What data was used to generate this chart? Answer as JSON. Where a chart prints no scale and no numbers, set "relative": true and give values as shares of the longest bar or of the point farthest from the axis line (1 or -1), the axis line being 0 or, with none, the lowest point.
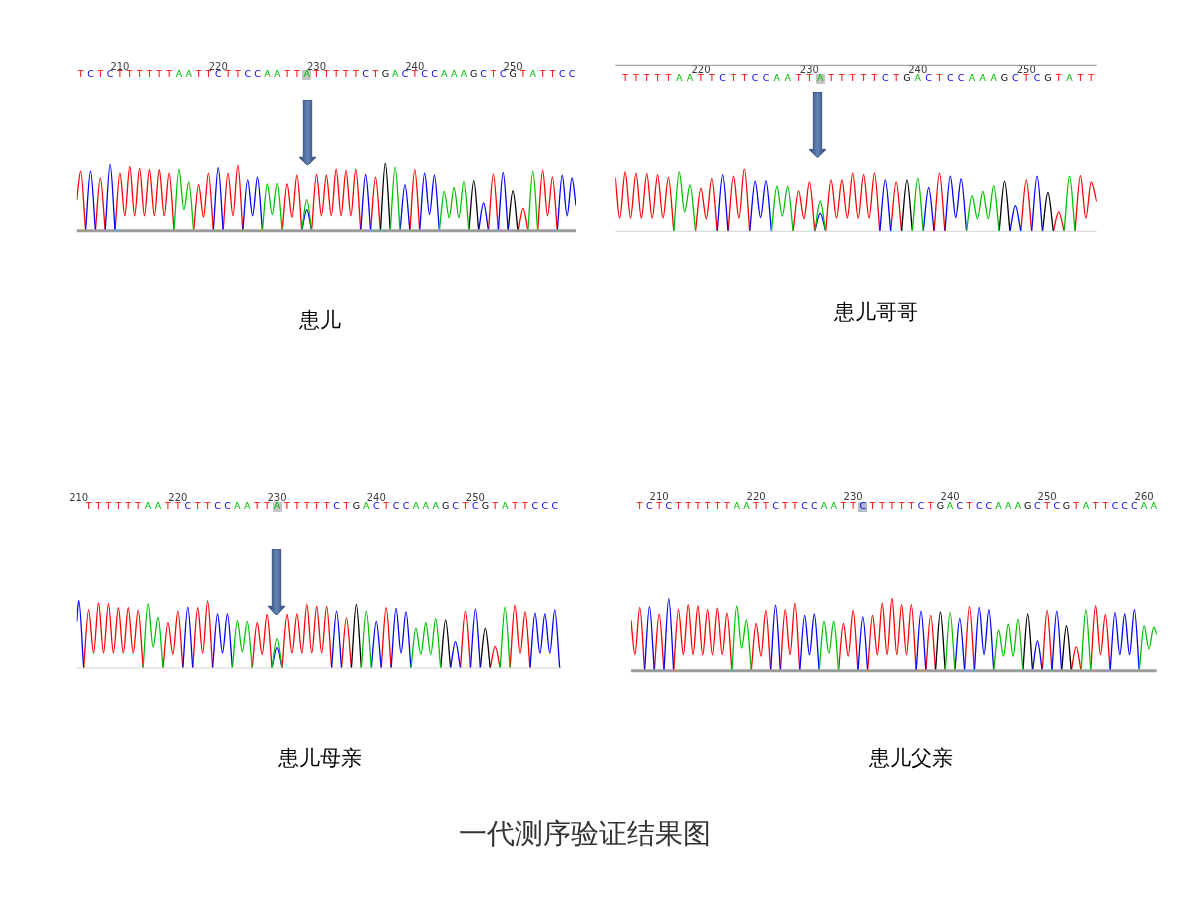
{
  "chart_data": [
    {
      "type": "line",
      "title": "患儿",
      "relative": true,
      "xlim": [
        205.6,
        256.4
      ],
      "xticks": [
        210,
        220,
        230,
        240,
        250
      ],
      "annotations": [
        "T",
        "C",
        "T",
        "C",
        "T",
        "T",
        "T",
        "T",
        "T",
        "T",
        "A",
        "A",
        "T",
        "T",
        "C",
        "T",
        "T",
        "C",
        "C",
        "A",
        "A",
        "T",
        "T",
        "A",
        "T",
        "T",
        "T",
        "T",
        "T",
        "C",
        "T",
        "G",
        "A",
        "C",
        "T",
        "C",
        "C",
        "A",
        "A",
        "A",
        "G",
        "C",
        "T",
        "C",
        "G",
        "T",
        "A",
        "T",
        "T",
        "C",
        "C"
      ],
      "series": [
        {
          "color": "#00c000",
          "x": [
            215.5,
            216,
            216.5,
            217,
            217.5,
            221,
            224.5,
            225,
            225.5,
            226,
            226.5,
            227.5,
            228.5,
            229,
            229.5,
            233.5,
            237.5,
            238,
            238.5,
            240.5,
            242.5,
            243,
            243.5,
            244,
            244.5,
            245,
            245.5,
            248.5,
            251.5,
            252,
            252.5
          ],
          "values": [
            0,
            0.91,
            0.31,
            0.72,
            0,
            null,
            0,
            0.69,
            0.24,
            0.7,
            0,
            null,
            0,
            0.46,
            0,
            null,
            0,
            0.94,
            0,
            null,
            0,
            0.58,
            0.19,
            0.64,
            0.19,
            0.73,
            0,
            null,
            0,
            0.88,
            0
          ]
        },
        {
          "color": "#0000ff",
          "x": [
            206.5,
            207,
            207.5,
            208,
            208.5,
            209,
            209.5,
            214.5,
            219.5,
            220,
            220.5,
            221.5,
            222.5,
            223,
            223.5,
            224,
            224.5,
            226.5,
            228.5,
            229,
            229.5,
            232,
            234.5,
            235,
            235.5,
            237,
            238.5,
            239,
            239.5,
            240,
            240.5,
            241,
            241.5,
            242,
            242.5,
            244.5,
            246.5,
            247,
            247.5,
            248,
            248.5,
            249,
            249.5,
            252,
            254.5,
            255,
            255.5,
            256,
            256.4
          ],
          "values": [
            0,
            0.88,
            0,
            null,
            0,
            0.98,
            0,
            null,
            0,
            0.93,
            0,
            null,
            0,
            0.75,
            0.22,
            0.79,
            0,
            null,
            0,
            0.31,
            0,
            null,
            0,
            0.83,
            0,
            null,
            0,
            0.68,
            0,
            null,
            0,
            0.85,
            0.24,
            0.82,
            0,
            null,
            0,
            0.41,
            0,
            null,
            0,
            0.86,
            0,
            null,
            0,
            0.82,
            0.22,
            0.78,
            0.38
          ]
        },
        {
          "color": "#000000",
          "x": [
            236.5,
            237,
            237.5,
            241.5,
            245.5,
            246,
            246.5,
            248,
            249.5,
            250,
            250.5
          ],
          "values": [
            0,
            1,
            0,
            null,
            0,
            0.74,
            0,
            null,
            0,
            0.59,
            0
          ]
        },
        {
          "color": "#ff0000",
          "x": [
            205.6,
            206,
            206.5,
            207,
            207.5,
            208,
            208.5,
            209,
            209.5,
            210,
            210.5,
            211,
            211.5,
            212,
            212.5,
            213,
            213.5,
            214,
            214.5,
            215,
            215.5,
            216.5,
            217.5,
            218,
            218.5,
            219,
            219.5,
            220,
            220.5,
            221,
            221.5,
            222,
            222.5,
            224.5,
            226.5,
            227,
            227.5,
            228,
            228.5,
            229,
            229.5,
            230,
            230.5,
            231,
            231.5,
            232,
            232.5,
            233,
            233.5,
            234,
            234.5,
            235,
            235.5,
            236,
            236.5,
            238,
            239.5,
            240,
            240.5,
            244,
            247.5,
            248,
            248.5,
            249.5,
            250.5,
            251,
            251.5,
            252,
            252.5,
            253,
            253.5,
            254,
            254.5
          ],
          "values": [
            0.46,
            0.88,
            0,
            null,
            0,
            0.78,
            0,
            null,
            0,
            0.85,
            0.22,
            0.95,
            0.22,
            0.92,
            0.22,
            0.9,
            0.22,
            0.9,
            0.22,
            0.85,
            0,
            null,
            0,
            0.68,
            0.2,
            0.85,
            0,
            null,
            0,
            0.85,
            0.22,
            0.97,
            0,
            null,
            0,
            0.69,
            0.2,
            0.82,
            0,
            null,
            0,
            0.83,
            0.22,
            0.82,
            0.22,
            0.91,
            0.22,
            0.89,
            0.22,
            0.91,
            0,
            null,
            0,
            0.79,
            0,
            null,
            0,
            0.9,
            0,
            null,
            0,
            0.84,
            0,
            null,
            0,
            0.33,
            0,
            null,
            0,
            0.89,
            0.22,
            0.79,
            0
          ]
        }
      ]
    },
    {
      "type": "line",
      "title": "患儿哥哥",
      "relative": true,
      "xlim": [
        212.1,
        256.5
      ],
      "xticks": [
        220,
        230,
        240,
        250
      ],
      "annotations": [
        "T",
        "T",
        "T",
        "T",
        "T",
        "A",
        "A",
        "T",
        "T",
        "C",
        "T",
        "T",
        "C",
        "C",
        "A",
        "A",
        "T",
        "T",
        "A",
        "T",
        "T",
        "T",
        "T",
        "T",
        "C",
        "T",
        "G",
        "A",
        "C",
        "T",
        "C",
        "C",
        "A",
        "A",
        "A",
        "G",
        "C",
        "T",
        "C",
        "G",
        "T",
        "A",
        "T",
        "T"
      ],
      "series": [
        {
          "color": "#00c000",
          "x": [
            217.5,
            218,
            218.5,
            219,
            219.5,
            223,
            226.5,
            227,
            227.5,
            228,
            228.5,
            229.5,
            230.5,
            231,
            231.5,
            235.5,
            239.5,
            240,
            240.5,
            242.5,
            244.5,
            245,
            245.5,
            246,
            246.5,
            247,
            247.5,
            250.5,
            253.5,
            254,
            254.5
          ],
          "values": [
            0,
            0.95,
            0.31,
            0.74,
            0,
            null,
            0,
            0.72,
            0.24,
            0.72,
            0,
            null,
            0,
            0.48,
            0,
            null,
            0,
            0.85,
            0,
            null,
            0,
            0.57,
            0.2,
            0.64,
            0.2,
            0.73,
            0,
            null,
            0,
            0.88,
            0
          ]
        },
        {
          "color": "#0000ff",
          "x": [
            221.5,
            222,
            222.5,
            223.5,
            224.5,
            225,
            225.5,
            226,
            226.5,
            228.5,
            230.5,
            231,
            231.5,
            234,
            236.5,
            237,
            237.5,
            239,
            240.5,
            241,
            241.5,
            242,
            242.5,
            243,
            243.5,
            244,
            244.5,
            246.5,
            248.5,
            249,
            249.5,
            250,
            250.5,
            251,
            251.5
          ],
          "values": [
            0,
            0.9,
            0,
            null,
            0,
            0.8,
            0.22,
            0.81,
            0,
            null,
            0,
            0.29,
            0,
            null,
            0,
            0.82,
            0,
            null,
            0,
            0.7,
            0,
            null,
            0,
            0.88,
            0.22,
            0.84,
            0,
            null,
            0,
            0.41,
            0,
            null,
            0,
            0.88,
            0
          ]
        },
        {
          "color": "#000000",
          "x": [
            238.5,
            239,
            239.5,
            243.5,
            247.5,
            248,
            248.5,
            250,
            251.5,
            252,
            252.5
          ],
          "values": [
            0,
            0.82,
            0,
            null,
            0,
            0.8,
            0,
            null,
            0,
            0.62,
            0
          ]
        },
        {
          "color": "#ff0000",
          "x": [
            212.1,
            212.5,
            213,
            213.5,
            214,
            214.5,
            215,
            215.5,
            216,
            216.5,
            217,
            217.5,
            218.5,
            219.5,
            220,
            220.5,
            221,
            221.5,
            222,
            222.5,
            223,
            223.5,
            224,
            224.5,
            226.5,
            228.5,
            229,
            229.5,
            230,
            230.5,
            231,
            231.5,
            232,
            232.5,
            233,
            233.5,
            234,
            234.5,
            235,
            235.5,
            236,
            236.5,
            237,
            237.5,
            238,
            238.5,
            240,
            241.5,
            242,
            242.5,
            246,
            249.5,
            250,
            250.5,
            251.5,
            252.5,
            253,
            253.5,
            254,
            254.5,
            255,
            255.5,
            256,
            256.5
          ],
          "values": [
            0.85,
            0.21,
            0.95,
            0.21,
            0.93,
            0.21,
            0.92,
            0.21,
            0.9,
            0.21,
            0.86,
            0,
            null,
            0,
            0.69,
            0.2,
            0.84,
            0,
            null,
            0,
            0.88,
            0.21,
            1,
            0,
            null,
            0,
            0.65,
            0.2,
            0.79,
            0,
            null,
            0,
            0.82,
            0.21,
            0.82,
            0.21,
            0.93,
            0.21,
            0.91,
            0.21,
            0.93,
            0,
            null,
            0,
            0.79,
            0,
            null,
            0,
            0.93,
            0,
            null,
            0,
            0.82,
            0,
            null,
            0,
            0.31,
            0,
            null,
            0,
            0.89,
            0.21,
            0.79,
            0.48
          ]
        }
      ]
    },
    {
      "type": "line",
      "title": "患儿母亲",
      "relative": true,
      "xlim": [
        209.8,
        258.7
      ],
      "xticks": [
        210,
        220,
        230,
        240,
        250
      ],
      "annotations": [
        "T",
        "T",
        "T",
        "T",
        "T",
        "T",
        "A",
        "A",
        "T",
        "T",
        "C",
        "T",
        "T",
        "C",
        "C",
        "A",
        "A",
        "T",
        "T",
        "A",
        "T",
        "T",
        "T",
        "T",
        "T",
        "C",
        "T",
        "G",
        "A",
        "C",
        "T",
        "C",
        "C",
        "A",
        "A",
        "A",
        "G",
        "C",
        "T",
        "C",
        "G",
        "T",
        "A",
        "T",
        "T",
        "C",
        "C",
        "C"
      ],
      "series": [
        {
          "color": "#00c000",
          "x": [
            216.5,
            217,
            217.5,
            218,
            218.5,
            222,
            225.5,
            226,
            226.5,
            227,
            227.5,
            228.5,
            229.5,
            230,
            230.5,
            234.5,
            238.5,
            239,
            239.5,
            241.5,
            243.5,
            244,
            244.5,
            245,
            245.5,
            246,
            246.5,
            249.5,
            252.5,
            253,
            253.5
          ],
          "values": [
            0,
            0.95,
            0.31,
            0.75,
            0,
            null,
            0,
            0.7,
            0.24,
            0.69,
            0,
            null,
            0,
            0.43,
            0,
            null,
            0,
            0.84,
            0,
            null,
            0,
            0.59,
            0.2,
            0.67,
            0.2,
            0.73,
            0,
            null,
            0,
            0.9,
            0
          ]
        },
        {
          "color": "#0000ff",
          "x": [
            209.8,
            210,
            210.5,
            215.5,
            220.5,
            221,
            221.5,
            222.5,
            223.5,
            224,
            224.5,
            225,
            225.5,
            227.5,
            229.5,
            230,
            230.5,
            233,
            235.5,
            236,
            236.5,
            238,
            239.5,
            240,
            240.5,
            241,
            241.5,
            242,
            242.5,
            243,
            243.5,
            245.5,
            247.5,
            248,
            248.5,
            249,
            249.5,
            250,
            250.5,
            253,
            255.5,
            256,
            256.5,
            257,
            257.5,
            258,
            258.5
          ],
          "values": [
            0.69,
            1,
            0,
            null,
            0,
            0.9,
            0,
            null,
            0,
            0.8,
            0.22,
            0.8,
            0,
            null,
            0,
            0.3,
            0,
            null,
            0,
            0.84,
            0,
            null,
            0,
            0.69,
            0,
            null,
            0,
            0.88,
            0.22,
            0.83,
            0,
            null,
            0,
            0.39,
            0,
            null,
            0,
            0.87,
            0,
            null,
            0,
            0.81,
            0.22,
            0.8,
            0.22,
            0.86,
            0
          ]
        },
        {
          "color": "#000000",
          "x": [
            237.5,
            238,
            238.5,
            242.5,
            246.5,
            247,
            247.5,
            249,
            250.5,
            251,
            251.5
          ],
          "values": [
            0,
            0.94,
            0,
            null,
            0,
            0.71,
            0,
            null,
            0,
            0.59,
            0
          ]
        },
        {
          "color": "#ff0000",
          "x": [
            210.5,
            211,
            211.5,
            212,
            212.5,
            213,
            213.5,
            214,
            214.5,
            215,
            215.5,
            216,
            216.5,
            217.5,
            218.5,
            219,
            219.5,
            220,
            220.5,
            221,
            221.5,
            222,
            222.5,
            223,
            223.5,
            225.5,
            227.5,
            228,
            228.5,
            229,
            229.5,
            230,
            230.5,
            231,
            231.5,
            232,
            232.5,
            233,
            233.5,
            234,
            234.5,
            235,
            235.5,
            236,
            236.5,
            237,
            237.5,
            239,
            240.5,
            241,
            241.5,
            245,
            248.5,
            249,
            249.5,
            250.5,
            251.5,
            252,
            252.5,
            253,
            253.5,
            254,
            254.5,
            255,
            255.5
          ],
          "values": [
            0,
            0.86,
            0.22,
            0.96,
            0.22,
            0.95,
            0.22,
            0.89,
            0.22,
            0.89,
            0.22,
            0.85,
            0,
            null,
            0,
            0.67,
            0.2,
            0.84,
            0,
            null,
            0,
            0.89,
            0.22,
            0.99,
            0,
            null,
            0,
            0.67,
            0.2,
            0.79,
            0,
            null,
            0,
            0.79,
            0.22,
            0.8,
            0.22,
            0.94,
            0.22,
            0.91,
            0.22,
            0.91,
            0,
            null,
            0,
            0.74,
            0,
            null,
            0,
            0.89,
            0,
            null,
            0,
            0.84,
            0,
            null,
            0,
            0.32,
            0,
            null,
            0,
            0.93,
            0.22,
            0.83,
            0
          ]
        }
      ]
    },
    {
      "type": "line",
      "title": "患儿父亲",
      "relative": true,
      "xlim": [
        207.1,
        261.3
      ],
      "xticks": [
        210,
        220,
        230,
        240,
        250,
        260
      ],
      "annotations": [
        "T",
        "C",
        "T",
        "C",
        "T",
        "T",
        "T",
        "T",
        "T",
        "T",
        "A",
        "A",
        "T",
        "T",
        "C",
        "T",
        "T",
        "C",
        "C",
        "A",
        "A",
        "T",
        "T",
        "C",
        "T",
        "T",
        "T",
        "T",
        "T",
        "C",
        "T",
        "G",
        "A",
        "C",
        "T",
        "C",
        "C",
        "A",
        "A",
        "A",
        "G",
        "C",
        "T",
        "C",
        "G",
        "T",
        "A",
        "T",
        "T",
        "C",
        "C",
        "C",
        "A",
        "A"
      ],
      "series": [
        {
          "color": "#00c000",
          "x": [
            217.5,
            218,
            218.5,
            219,
            219.5,
            223,
            226.5,
            227,
            227.5,
            228,
            228.5,
            234,
            239.5,
            240,
            240.5,
            242.5,
            244.5,
            245,
            245.5,
            246,
            246.5,
            247,
            247.5,
            250.5,
            253.5,
            254,
            254.5,
            257,
            259.5,
            260,
            260.5,
            261,
            261.3
          ],
          "values": [
            0,
            0.89,
            0.31,
            0.7,
            0,
            null,
            0,
            0.68,
            0.24,
            0.68,
            0,
            null,
            0,
            0.8,
            0,
            null,
            0,
            0.56,
            0.2,
            0.64,
            0.2,
            0.71,
            0,
            null,
            0,
            0.84,
            0,
            null,
            0,
            0.62,
            0.3,
            0.6,
            0.5
          ]
        },
        {
          "color": "#0000ff",
          "x": [
            208.5,
            209,
            209.5,
            210,
            210.5,
            211,
            211.5,
            216.5,
            221.5,
            222,
            222.5,
            223.5,
            224.5,
            225,
            225.5,
            226,
            226.5,
            228.5,
            230.5,
            231,
            231.5,
            234,
            236.5,
            237,
            237.5,
            239,
            240.5,
            241,
            241.5,
            242,
            242.5,
            243,
            243.5,
            244,
            244.5,
            246.5,
            248.5,
            249,
            249.5,
            250,
            250.5,
            251,
            251.5,
            254,
            256.5,
            257,
            257.5,
            258,
            258.5,
            259,
            259.5
          ],
          "values": [
            0,
            0.88,
            0,
            null,
            0,
            0.99,
            0,
            null,
            0,
            0.9,
            0,
            null,
            0,
            0.76,
            0.22,
            0.78,
            0,
            null,
            0,
            0.74,
            0,
            null,
            0,
            0.82,
            0,
            null,
            0,
            0.72,
            0,
            null,
            0,
            0.87,
            0.22,
            0.84,
            0,
            null,
            0,
            0.41,
            0,
            null,
            0,
            0.82,
            0,
            null,
            0,
            0.8,
            0.22,
            0.78,
            0.22,
            0.84,
            0
          ]
        },
        {
          "color": "#000000",
          "x": [
            238.5,
            239,
            239.5,
            243.5,
            247.5,
            248,
            248.5,
            250,
            251.5,
            252,
            252.5
          ],
          "values": [
            0,
            0.81,
            0,
            null,
            0,
            0.78,
            0,
            null,
            0,
            0.62,
            0
          ]
        },
        {
          "color": "#ff0000",
          "x": [
            207.1,
            207.5,
            208,
            208.5,
            209,
            209.5,
            210,
            210.5,
            211,
            211.5,
            212,
            212.5,
            213,
            213.5,
            214,
            214.5,
            215,
            215.5,
            216,
            216.5,
            217,
            217.5,
            218.5,
            219.5,
            220,
            220.5,
            221,
            221.5,
            222,
            222.5,
            223,
            223.5,
            224,
            224.5,
            226.5,
            228.5,
            229,
            229.5,
            230,
            230.5,
            231,
            231.5,
            232,
            232.5,
            233,
            233.5,
            234,
            234.5,
            235,
            235.5,
            236,
            236.5,
            237,
            237.5,
            238,
            238.5,
            240,
            241.5,
            242,
            242.5,
            246,
            249.5,
            250,
            250.5,
            251.5,
            252.5,
            253,
            253.5,
            254,
            254.5,
            255,
            255.5,
            256,
            256.5
          ],
          "values": [
            0.69,
            0.22,
            0.87,
            0,
            null,
            0,
            0.78,
            0,
            null,
            0,
            0.84,
            0.22,
            0.91,
            0.22,
            0.89,
            0.22,
            0.84,
            0.22,
            0.86,
            0.22,
            0.79,
            0,
            null,
            0,
            0.65,
            0.2,
            0.83,
            0,
            null,
            0,
            0.84,
            0.22,
            0.93,
            0,
            null,
            0,
            0.65,
            0.2,
            0.83,
            0,
            null,
            0,
            0.76,
            0.22,
            0.93,
            0.22,
            1,
            0.22,
            0.91,
            0.22,
            0.91,
            0,
            null,
            0,
            0.76,
            0,
            null,
            0,
            0.88,
            0,
            null,
            0,
            0.83,
            0,
            null,
            0,
            0.33,
            0,
            null,
            0,
            0.89,
            0.22,
            0.77,
            0
          ]
        }
      ]
    },
    {
      "type": "other",
      "title": "一代测序验证结果图"
    }
  ]
}
